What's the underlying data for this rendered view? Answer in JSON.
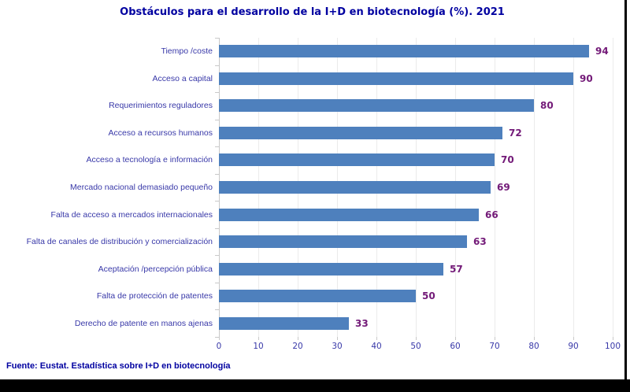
{
  "title": "Obstáculos para el desarrollo de la I+D en biotecnología (%). 2021",
  "source_note": "Fuente: Eustat. Estadística sobre I+D en biotecnología",
  "chart_data": {
    "type": "bar",
    "orientation": "horizontal",
    "title": "Obstáculos para el desarrollo de la I+D en biotecnología (%). 2021",
    "categories": [
      "Tiempo /coste",
      "Acceso a capital",
      "Requerimientos reguladores",
      "Acceso a recursos humanos",
      "Acceso a tecnología e información",
      "Mercado nacional demasiado pequeño",
      "Falta de acceso a mercados internacionales",
      "Falta de canales de distribución y comercialización",
      "Aceptación /percepción pública",
      "Falta de protección de patentes",
      "Derecho de patente en manos ajenas"
    ],
    "values": [
      94,
      90,
      80,
      72,
      70,
      69,
      66,
      63,
      57,
      50,
      33
    ],
    "xlim": [
      0,
      100
    ],
    "x_ticks": [
      0,
      10,
      20,
      30,
      40,
      50,
      60,
      70,
      80,
      90,
      100
    ],
    "grid": true,
    "legend": false,
    "value_labels_shown": true,
    "xlabel": "",
    "ylabel": "",
    "colors": {
      "bar": "#4E80BD",
      "value_label": "#731A78",
      "category_label": "#3838A8",
      "tick_label": "#3838A8",
      "title": "#0000A0",
      "source_note": "#0000A0",
      "gridline": "#EBEBEB",
      "axis": "#C9C9C9",
      "window_frame": "#000000",
      "background": "#FFFFFF"
    }
  }
}
